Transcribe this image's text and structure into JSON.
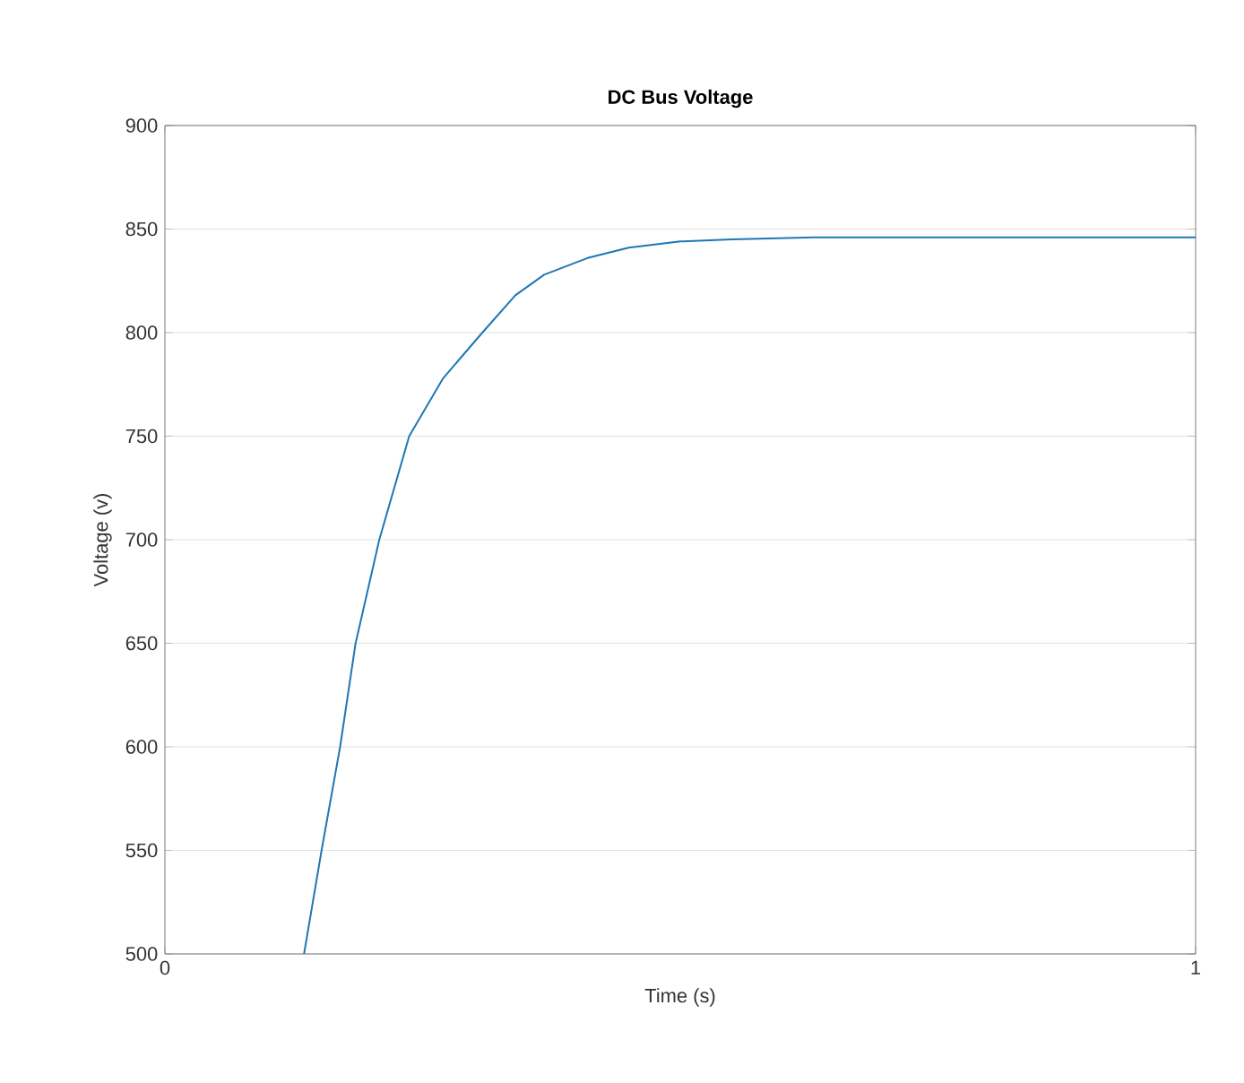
{
  "chart_data": {
    "type": "line",
    "title": "DC Bus Voltage",
    "xlabel": "Time (s)",
    "ylabel": "Voltage (v)",
    "xlim": [
      0,
      1
    ],
    "ylim": [
      500,
      900
    ],
    "xticks": [
      0,
      1
    ],
    "yticks": [
      500,
      550,
      600,
      650,
      700,
      750,
      800,
      850,
      900
    ],
    "grid": "y",
    "line_style": "solid",
    "marker": "none",
    "series": [
      {
        "color": "#1f77b4",
        "x": [
          0.135,
          0.152,
          0.17,
          0.185,
          0.208,
          0.237,
          0.27,
          0.308,
          0.34,
          0.368,
          0.41,
          0.45,
          0.5,
          0.55,
          0.63,
          0.7,
          0.8,
          0.9,
          1.0
        ],
        "values": [
          500,
          550,
          600,
          650,
          700,
          750,
          778,
          800,
          818,
          828,
          836,
          841,
          844,
          845,
          846,
          846,
          846,
          846,
          846
        ]
      }
    ]
  }
}
